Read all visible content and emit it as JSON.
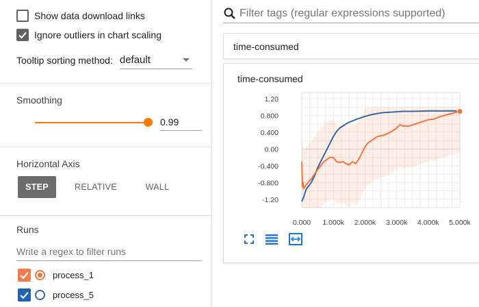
{
  "colors": {
    "accent": "#f57c00",
    "run1": "#f4743b",
    "run5": "#3268a8",
    "run1_check": "#f27d4a",
    "run5_check": "#1f64b0"
  },
  "sidebar": {
    "show_download_links": {
      "label": "Show data download links",
      "checked": false
    },
    "ignore_outliers": {
      "label": "Ignore outliers in chart scaling",
      "checked": true
    },
    "tooltip_sorting": {
      "label": "Tooltip sorting method:",
      "value": "default"
    },
    "smoothing": {
      "title": "Smoothing",
      "value": "0.99",
      "level": 0.99
    },
    "horizontal_axis": {
      "title": "Horizontal Axis",
      "options": [
        "STEP",
        "RELATIVE",
        "WALL"
      ],
      "selected": "STEP"
    },
    "runs": {
      "title": "Runs",
      "filter_placeholder": "Write a regex to filter runs",
      "items": [
        {
          "name": "process_1",
          "checked": true,
          "color": "#f4743b",
          "selected": true
        },
        {
          "name": "process_5",
          "checked": true,
          "color": "#3268a8",
          "selected": false
        }
      ]
    }
  },
  "main": {
    "search_placeholder": "Filter tags (regular expressions supported)",
    "group_title": "time-consumed",
    "chart_title": "time-consumed",
    "icons": [
      "search-icon",
      "fit-domain-icon",
      "toggle-log-scale-icon",
      "fit-to-data-icon"
    ]
  },
  "chart_data": {
    "type": "line",
    "title": "time-consumed",
    "xlabel": "",
    "ylabel": "",
    "xlim": [
      0,
      5000
    ],
    "ylim": [
      -1.4,
      1.35
    ],
    "x_ticks": [
      "0.000",
      "1.000k",
      "2.000k",
      "3.000k",
      "4.000k",
      "5.000k"
    ],
    "y_ticks": [
      "1.20",
      "0.800",
      "0.400",
      "0.00",
      "-0.400",
      "-0.800",
      "-1.20"
    ],
    "grid": true,
    "series": [
      {
        "name": "process_5",
        "color": "#3268a8",
        "x": [
          0,
          30,
          60,
          100,
          150,
          200,
          300,
          400,
          500,
          600,
          700,
          800,
          900,
          1000,
          1100,
          1200,
          1300,
          1400,
          1500,
          1600,
          1700,
          1800,
          2000,
          2200,
          2400,
          2600,
          2800,
          3000,
          3200,
          3500,
          4000,
          4500,
          5000
        ],
        "y": [
          -1.25,
          -1.2,
          -1.15,
          -1.05,
          -0.95,
          -0.9,
          -0.8,
          -0.65,
          -0.45,
          -0.3,
          -0.15,
          0.0,
          0.15,
          0.3,
          0.42,
          0.5,
          0.55,
          0.6,
          0.64,
          0.67,
          0.7,
          0.73,
          0.78,
          0.82,
          0.85,
          0.87,
          0.88,
          0.89,
          0.9,
          0.9,
          0.91,
          0.91,
          0.91
        ]
      },
      {
        "name": "process_1",
        "color": "#f4743b",
        "x": [
          0,
          20,
          40,
          60,
          100,
          150,
          200,
          300,
          400,
          500,
          600,
          700,
          800,
          900,
          1000,
          1100,
          1200,
          1300,
          1400,
          1500,
          1600,
          1700,
          1800,
          1900,
          2000,
          2100,
          2200,
          2300,
          2400,
          2600,
          2800,
          3000,
          3100,
          3200,
          3400,
          3600,
          3800,
          4000,
          4200,
          4400,
          4600,
          4800,
          5000
        ],
        "y": [
          -0.3,
          -0.9,
          -0.8,
          -0.95,
          -0.9,
          -0.85,
          -0.8,
          -0.72,
          -0.6,
          -0.5,
          -0.4,
          -0.3,
          -0.25,
          -0.2,
          -0.2,
          -0.3,
          -0.32,
          -0.3,
          -0.35,
          -0.38,
          -0.3,
          -0.35,
          -0.25,
          -0.1,
          0.05,
          0.15,
          0.2,
          0.25,
          0.3,
          0.33,
          0.4,
          0.5,
          0.58,
          0.55,
          0.55,
          0.6,
          0.65,
          0.7,
          0.72,
          0.78,
          0.82,
          0.86,
          0.9
        ]
      }
    ]
  }
}
